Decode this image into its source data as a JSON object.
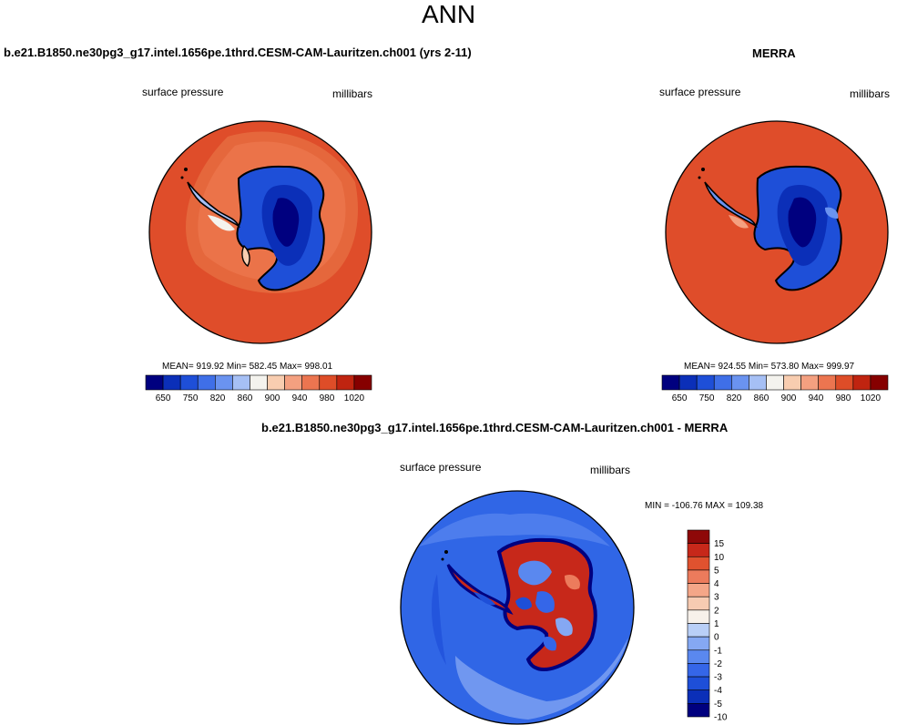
{
  "main_title": "ANN",
  "colors": {
    "absolute_palette": [
      "#00007f",
      "#0b2fb8",
      "#1e4fd8",
      "#3f6fe8",
      "#6a93f0",
      "#a6c0f5",
      "#f4f3ee",
      "#f8cdb0",
      "#f4a080",
      "#ec7550",
      "#de4d28",
      "#c02410",
      "#860000"
    ],
    "diff_palette": [
      "#00007f",
      "#0b2fb8",
      "#1e4fd8",
      "#3566e8",
      "#5a88ef",
      "#85a8f3",
      "#b9cff7",
      "#f7f1ea",
      "#f7cbb2",
      "#f4a688",
      "#ec7b5c",
      "#e0522f",
      "#c7281a",
      "#8e0808"
    ],
    "ocean_abs": "#df4d2a",
    "ocean_diff": "#3066e6"
  },
  "panels": [
    {
      "title": "b.e21.B1850.ne30pg3_g17.intel.1656pe.1thrd.CESM-CAM-Lauritzen.ch001 (yrs 2-11)",
      "left_label": "surface pressure",
      "right_label": "millibars",
      "stats": "MEAN= 919.92  Min= 582.45  Max= 998.01"
    },
    {
      "title": "MERRA",
      "left_label": "surface pressure",
      "right_label": "millibars",
      "stats": "MEAN= 924.55  Min= 573.80  Max= 999.97"
    },
    {
      "title": "b.e21.B1850.ne30pg3_g17.intel.1656pe.1thrd.CESM-CAM-Lauritzen.ch001 - MERRA",
      "left_label": "surface pressure",
      "right_label": "millibars",
      "stats": "MIN = -106.76  MAX = 109.38"
    }
  ],
  "chart_data": [
    {
      "type": "heatmap",
      "projection": "south polar stereographic",
      "variable": "surface pressure",
      "units": "millibars",
      "mean": 919.92,
      "min": 582.45,
      "max": 998.01,
      "colorbar_levels": [
        650,
        700,
        750,
        800,
        820,
        840,
        860,
        880,
        900,
        920,
        940,
        960,
        980,
        1000,
        1020
      ],
      "colorbar_tick_labels": [
        "650",
        "750",
        "820",
        "860",
        "900",
        "940",
        "980",
        "1020"
      ]
    },
    {
      "type": "heatmap",
      "projection": "south polar stereographic",
      "variable": "surface pressure",
      "units": "millibars",
      "mean": 924.55,
      "min": 573.8,
      "max": 999.97,
      "colorbar_levels": [
        650,
        700,
        750,
        800,
        820,
        840,
        860,
        880,
        900,
        920,
        940,
        960,
        980,
        1000,
        1020
      ],
      "colorbar_tick_labels": [
        "650",
        "750",
        "820",
        "860",
        "900",
        "940",
        "980",
        "1020"
      ]
    },
    {
      "type": "heatmap",
      "projection": "south polar stereographic",
      "variable": "surface pressure",
      "units": "millibars",
      "min": -106.76,
      "max": 109.38,
      "colorbar_levels": [
        15,
        10,
        5,
        4,
        3,
        2,
        1,
        0,
        -1,
        -2,
        -3,
        -4,
        -5,
        -10,
        -15
      ],
      "colorbar_tick_labels": [
        "15",
        "10",
        "5",
        "4",
        "3",
        "2",
        "1",
        "0",
        "-1",
        "-2",
        "-3",
        "-4",
        "-5",
        "-10",
        "-15"
      ]
    }
  ]
}
